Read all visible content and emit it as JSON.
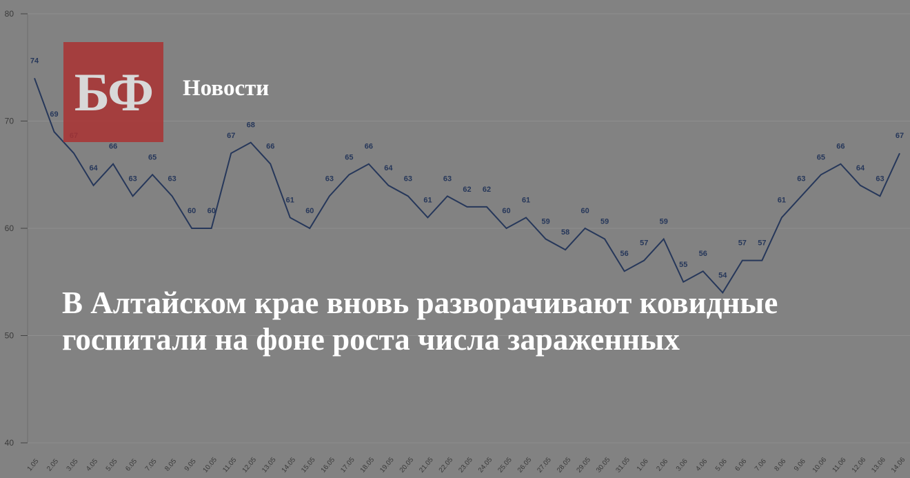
{
  "brand": {
    "logo": "БФ",
    "section": "Новости"
  },
  "headline": "В Алтайском крае вновь разворачивают ковидные госпитали на фоне роста числа зараженных",
  "chart_data": {
    "type": "line",
    "categories": [
      "1.05",
      "2.05",
      "3.05",
      "4.05",
      "5.05",
      "6.05",
      "7.05",
      "8.05",
      "9.05",
      "10.05",
      "11.05",
      "12.05",
      "13.05",
      "14.05",
      "15.05",
      "16.05",
      "17.05",
      "18.05",
      "19.05",
      "20.05",
      "21.05",
      "22.05",
      "23.05",
      "24.05",
      "25.05",
      "26.05",
      "27.05",
      "28.05",
      "29.05",
      "30.05",
      "31.05",
      "1.06",
      "2.06",
      "3.06",
      "4.06",
      "5.06",
      "6.06",
      "7.06",
      "8.06",
      "9.06",
      "10.06",
      "11.06",
      "12.06",
      "13.06",
      "14.06"
    ],
    "values": [
      74,
      69,
      67,
      64,
      66,
      63,
      65,
      63,
      60,
      60,
      67,
      68,
      66,
      61,
      60,
      63,
      65,
      66,
      64,
      63,
      61,
      63,
      62,
      62,
      60,
      61,
      59,
      58,
      60,
      59,
      56,
      57,
      59,
      55,
      56,
      54,
      57,
      57,
      61,
      63,
      65,
      66,
      64,
      63,
      67
    ],
    "color": "#26375a",
    "ylim": [
      40,
      80
    ],
    "yticks": [
      40,
      50,
      60,
      70,
      80
    ],
    "grid": true
  }
}
